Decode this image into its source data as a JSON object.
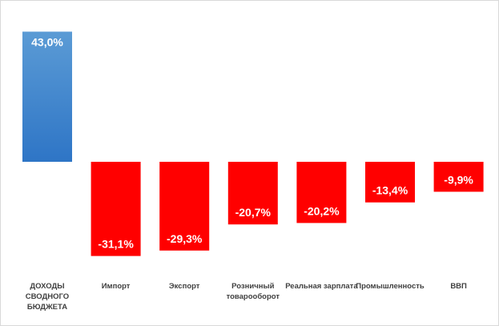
{
  "chart_data": {
    "type": "bar",
    "categories": [
      "ДОХОДЫ СВОДНОГО БЮДЖЕТА",
      "Импорт",
      "Экспорт",
      "Розничный товарооборот",
      "Реальная зарплата",
      "Промышленность",
      "ВВП"
    ],
    "category_lines": [
      [
        "ДОХОДЫ",
        "СВОДНОГО",
        "БЮДЖЕТА"
      ],
      [
        "Импорт"
      ],
      [
        "Экспорт"
      ],
      [
        "Розничный",
        "товарооборот"
      ],
      [
        "Реальная зарплата"
      ],
      [
        "Промышленность"
      ],
      [
        "ВВП"
      ]
    ],
    "values": [
      43.0,
      -31.1,
      -29.3,
      -20.7,
      -20.2,
      -13.4,
      -9.9
    ],
    "value_labels": [
      "43,0%",
      "-31,1%",
      "-29,3%",
      "-20,7%",
      "-20,2%",
      "-13,4%",
      "-9,9%"
    ],
    "colors": {
      "positive_top": "#5b9bd5",
      "positive_bottom": "#2e75c6",
      "negative": "#ff0000"
    },
    "title": "",
    "xlabel": "",
    "ylabel": "",
    "ylim": [
      -31.1,
      43.0
    ],
    "grid": false,
    "legend": "none"
  }
}
